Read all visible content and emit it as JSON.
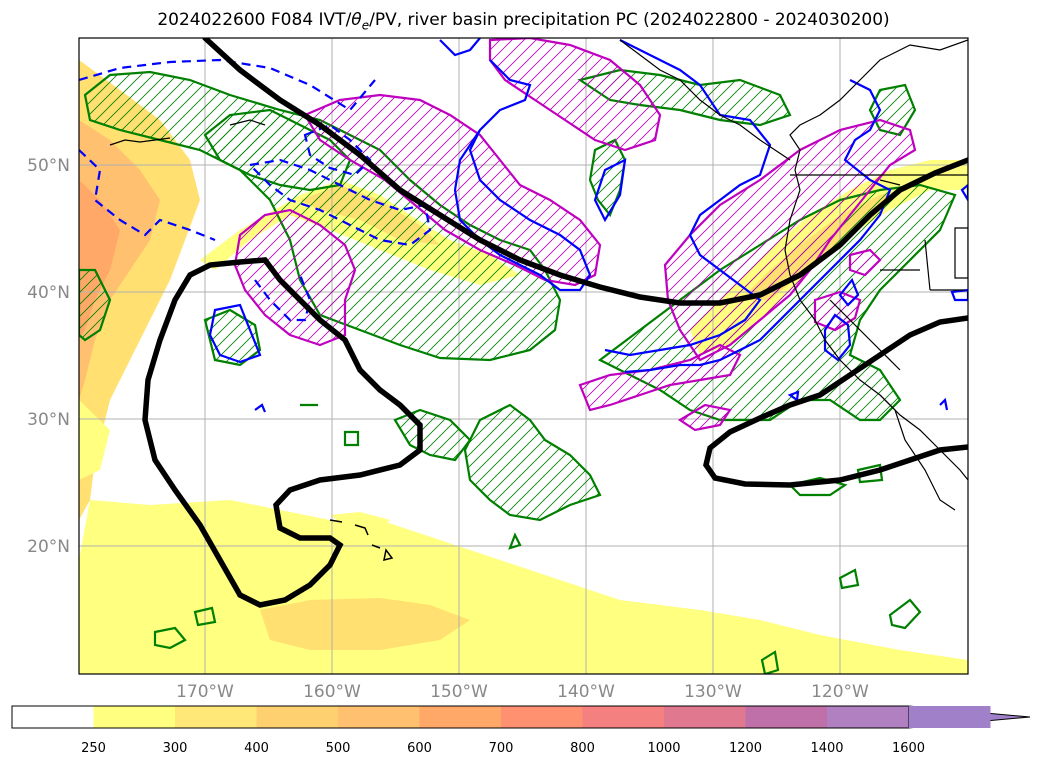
{
  "title": {
    "prefix": "2024022600 F084 IVT/",
    "theta": "θ",
    "sub": "e",
    "suffix": "/PV, river basin precipitation PC (2024022800 - 2024030200)"
  },
  "map": {
    "lat_labels": [
      "50°N",
      "40°N",
      "30°N",
      "20°N"
    ],
    "lon_labels": [
      "170°W",
      "160°W",
      "150°W",
      "140°W",
      "130°W",
      "120°W"
    ],
    "gridlines": true,
    "projection": "PlateCarree (Pacific, ~180°W–110°W, ~10°N–60°N)",
    "region": "North Pacific / US West Coast / Hawaii"
  },
  "contour_layers": [
    {
      "name": "IVT shading",
      "color": "#ffff80"
    },
    {
      "name": "theta_e contour",
      "color": "#008000",
      "hatched": true
    },
    {
      "name": "PV contour",
      "color": "#0000ff",
      "dashed_negative": true
    },
    {
      "name": "precipitation PC contour",
      "color": "#bf00bf",
      "hatched": true
    },
    {
      "name": "jet / reference contour",
      "color": "#000000"
    }
  ],
  "colorbar": {
    "labels": [
      "250",
      "300",
      "400",
      "500",
      "600",
      "700",
      "800",
      "1000",
      "1200",
      "1400",
      "1600"
    ],
    "colors": [
      "#ffffff",
      "#ffff80",
      "#ffe878",
      "#ffd070",
      "#ffc070",
      "#ffa868",
      "#ff9070",
      "#f58080",
      "#e07890",
      "#c070a8",
      "#b080c0",
      "#a080c8"
    ],
    "extend": "max"
  }
}
